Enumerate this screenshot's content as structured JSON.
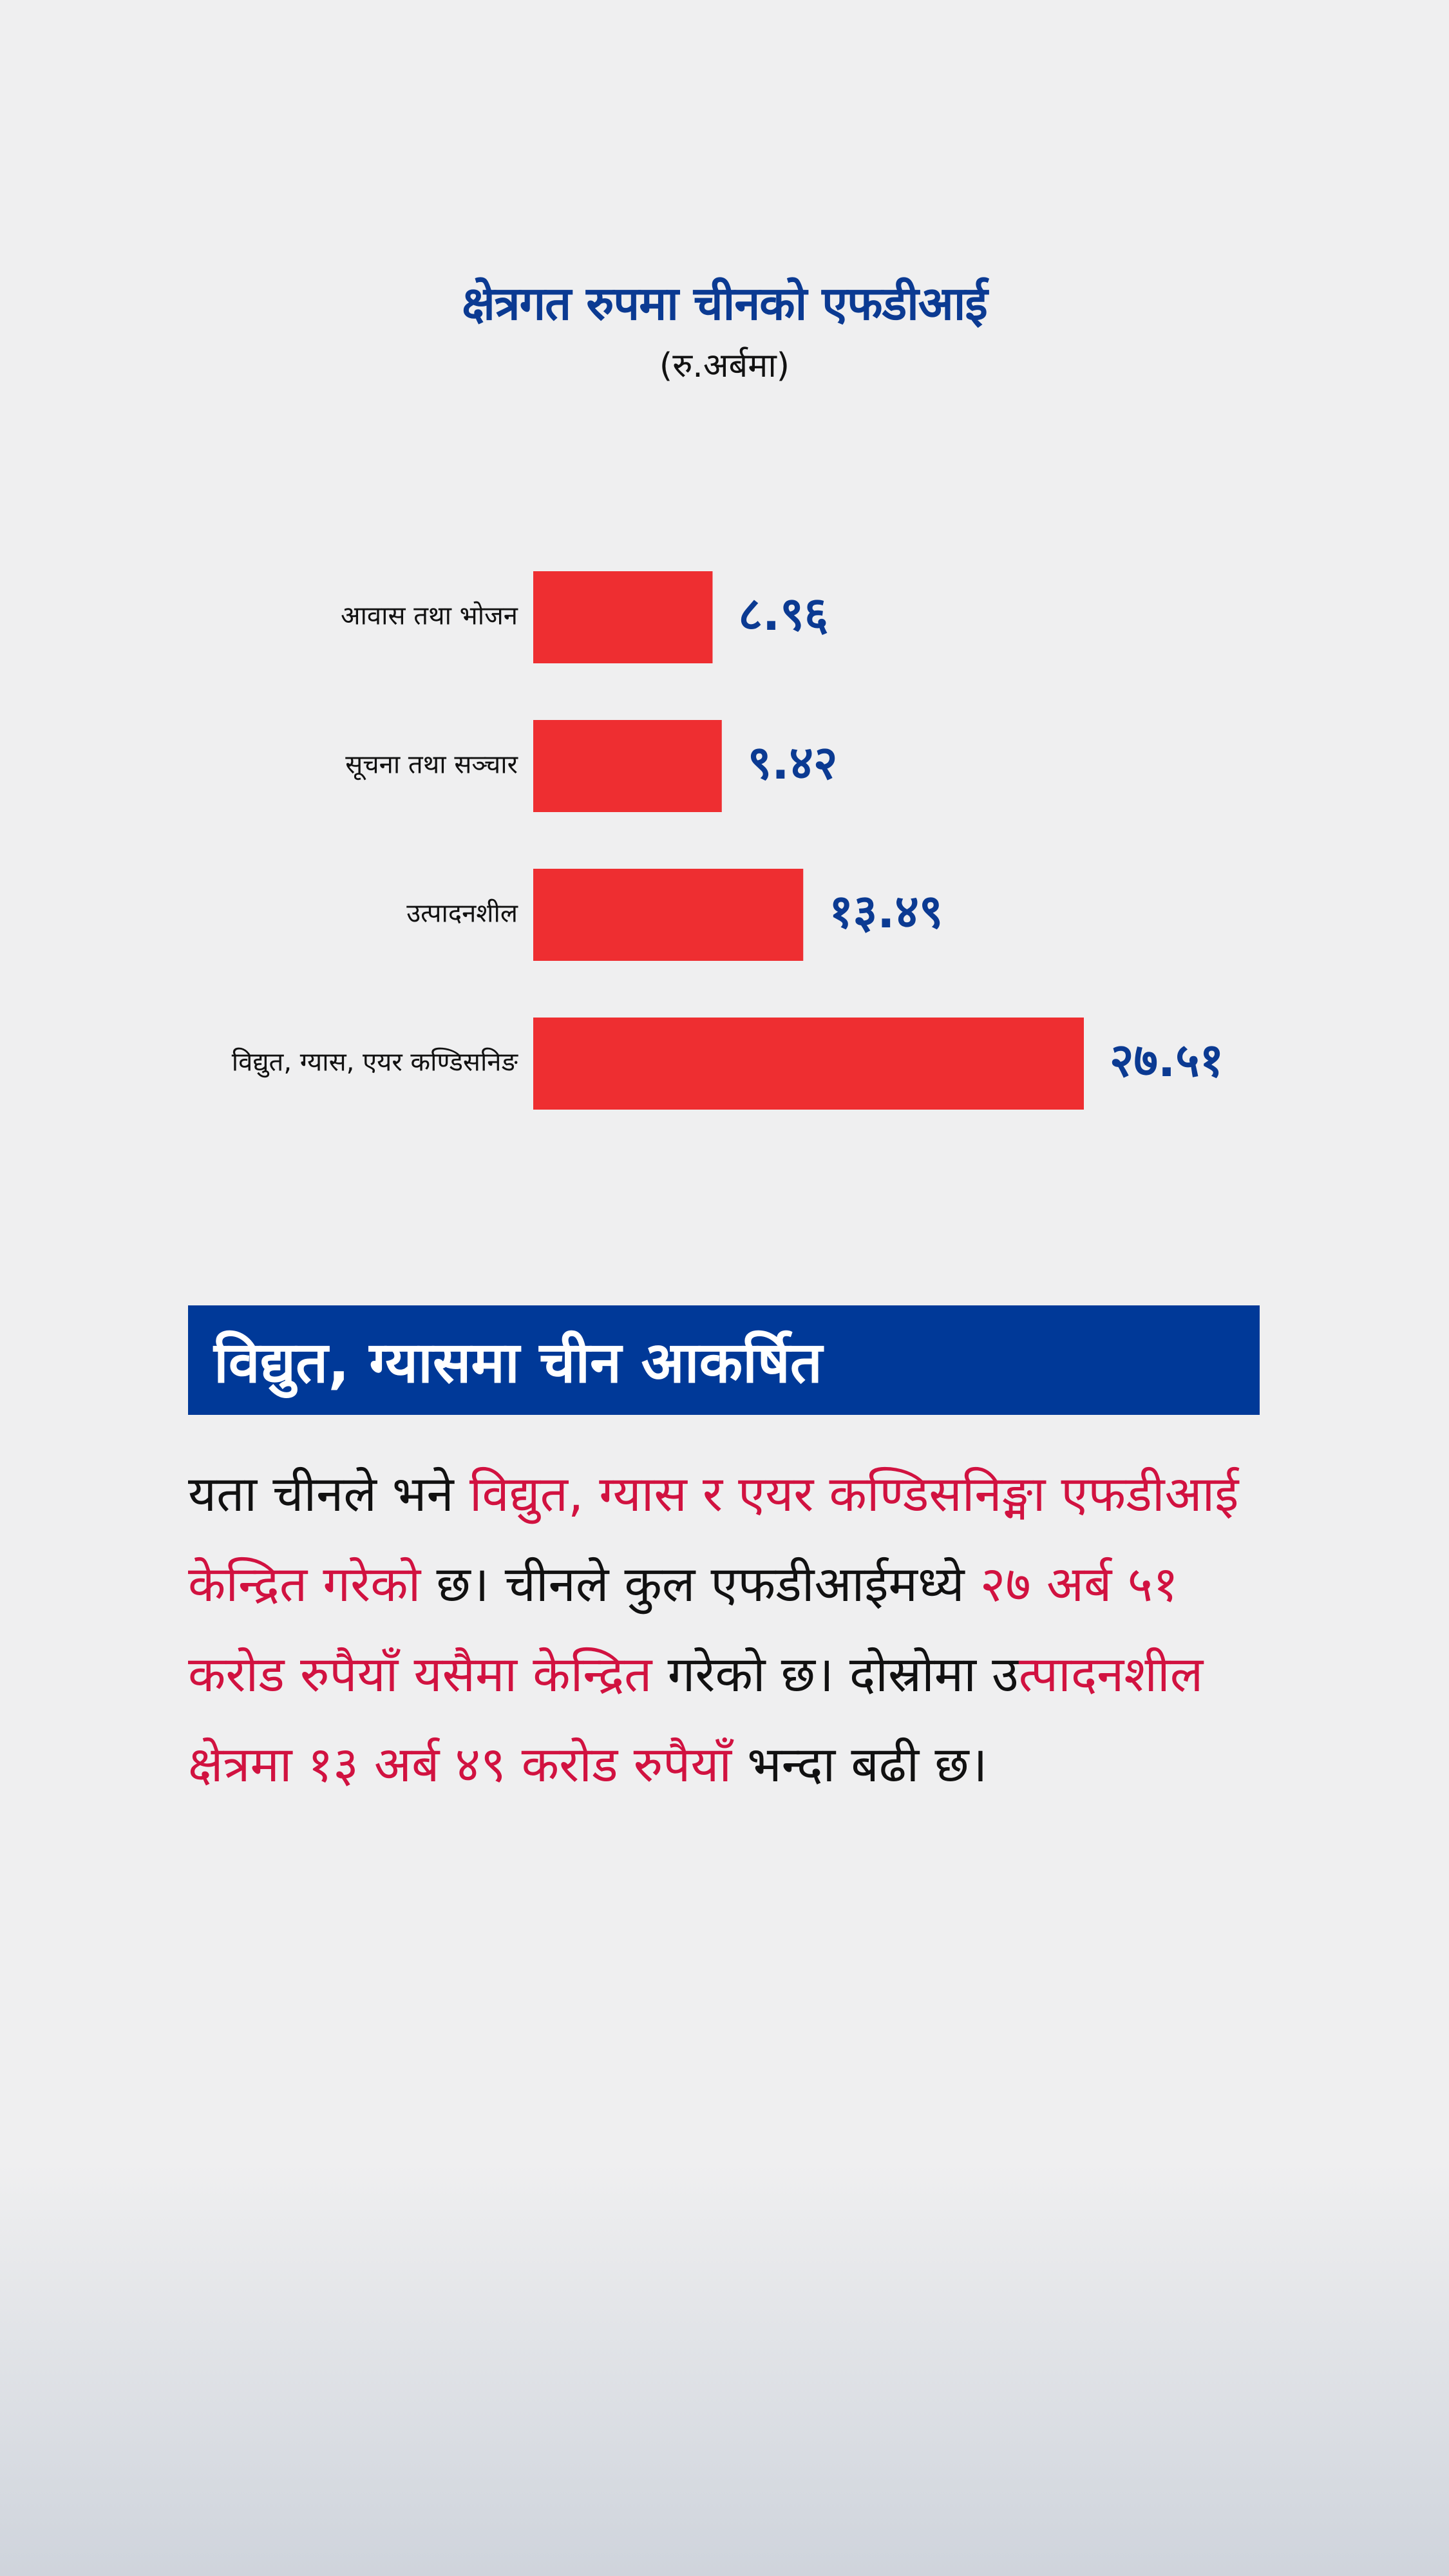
{
  "chart_data": {
    "type": "bar",
    "orientation": "horizontal",
    "title": "क्षेत्रगत रुपमा चीनको एफडीआई",
    "subtitle": "(रु.अर्बमा)",
    "categories": [
      "आवास तथा भोजन",
      "सूचना तथा सञ्चार",
      "उत्पादनशील",
      "विद्युत, ग्यास, एयर कण्डिसनिङ"
    ],
    "values": [
      8.96,
      9.42,
      13.49,
      27.51
    ],
    "value_labels": [
      "८.९६",
      "९.४२",
      "१३.४९",
      "२७.५१"
    ],
    "bar_color": "#ee2e31",
    "label_color": "#0b3a92",
    "grid": false,
    "legend": "none"
  },
  "section": {
    "heading": "विद्युत, ग्यासमा चीन आकर्षित",
    "heading_bg": "#003998",
    "highlight_color": "#d11240",
    "paragraph_segments": [
      {
        "text": "यता चीनले भने ",
        "highlight": false
      },
      {
        "text": "विद्युत, ग्यास र एयर कण्डिसनिङ्मा एफडीआई केन्द्रित गरेको",
        "highlight": true
      },
      {
        "text": " छ। चीनले कुल एफडीआईमध्ये ",
        "highlight": false
      },
      {
        "text": "२७ अर्ब ५१ करोड रुपैयाँ यसैमा केन्द्रित",
        "highlight": true
      },
      {
        "text": " गरेको छ। दोस्रोमा उ",
        "highlight": false
      },
      {
        "text": "त्पादनशील क्षेत्रमा १३ अर्ब ४९ करोड रुपैयाँ",
        "highlight": true
      },
      {
        "text": " भन्दा बढी छ।",
        "highlight": false
      }
    ]
  }
}
